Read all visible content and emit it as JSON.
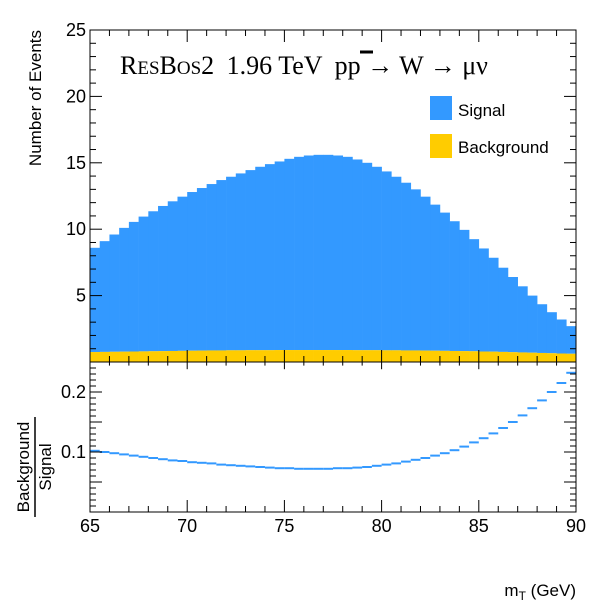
{
  "chart_data": [
    {
      "type": "bar",
      "panel": "top",
      "stacked": true,
      "title_parts": {
        "generator_prefix": "R",
        "generator_small": "ES",
        "generator_b": "B",
        "generator_small2": "OS",
        "generator_suffix": "2",
        "energy": "1.96 TeV",
        "process_p": "p",
        "process_pbar": "p",
        "process_rest": " → W → μν"
      },
      "ylabel": "Number of Events",
      "xlim": [
        65,
        90
      ],
      "ylim": [
        0,
        25
      ],
      "yticks": [
        5,
        10,
        15,
        20,
        25
      ],
      "bin_width": 0.5,
      "series": [
        {
          "name": "Background",
          "color": "#ffcc00",
          "values": [
            0.75,
            0.76,
            0.77,
            0.78,
            0.79,
            0.8,
            0.81,
            0.82,
            0.83,
            0.84,
            0.85,
            0.86,
            0.87,
            0.87,
            0.88,
            0.88,
            0.89,
            0.89,
            0.89,
            0.9,
            0.9,
            0.9,
            0.9,
            0.9,
            0.9,
            0.9,
            0.9,
            0.89,
            0.89,
            0.89,
            0.88,
            0.88,
            0.87,
            0.87,
            0.86,
            0.85,
            0.84,
            0.83,
            0.82,
            0.81,
            0.79,
            0.78,
            0.76,
            0.74,
            0.72,
            0.7,
            0.68,
            0.66,
            0.64,
            0.62
          ]
        },
        {
          "name": "Signal",
          "color": "#3399ff",
          "totals": [
            8.6,
            9.1,
            9.6,
            10.1,
            10.55,
            10.95,
            11.35,
            11.75,
            12.1,
            12.45,
            12.8,
            13.1,
            13.4,
            13.7,
            13.95,
            14.2,
            14.45,
            14.7,
            14.9,
            15.1,
            15.3,
            15.45,
            15.55,
            15.6,
            15.6,
            15.55,
            15.45,
            15.25,
            15.0,
            14.7,
            14.35,
            13.95,
            13.5,
            13.0,
            12.45,
            11.85,
            11.25,
            10.6,
            9.95,
            9.25,
            8.55,
            7.85,
            7.1,
            6.4,
            5.7,
            5.0,
            4.35,
            3.75,
            3.2,
            2.7
          ]
        }
      ],
      "legend": [
        "Signal",
        "Background"
      ],
      "legend_position": "top-right"
    },
    {
      "type": "bar",
      "panel": "bottom",
      "style": "step-markers",
      "ylabel_numerator": "Background",
      "ylabel_denominator": "Signal",
      "xlabel_main": "m",
      "xlabel_sub": "T",
      "xlabel_unit": " (GeV)",
      "xlim": [
        65,
        90
      ],
      "ylim": [
        0,
        0.25
      ],
      "xticks": [
        65,
        70,
        75,
        80,
        85,
        90
      ],
      "yticks": [
        0.1,
        0.2
      ],
      "color": "#3399ff",
      "values": [
        0.102,
        0.1,
        0.098,
        0.096,
        0.094,
        0.092,
        0.09,
        0.088,
        0.086,
        0.085,
        0.083,
        0.082,
        0.081,
        0.079,
        0.078,
        0.077,
        0.076,
        0.075,
        0.074,
        0.073,
        0.073,
        0.072,
        0.072,
        0.072,
        0.072,
        0.073,
        0.073,
        0.074,
        0.075,
        0.077,
        0.079,
        0.081,
        0.084,
        0.087,
        0.09,
        0.094,
        0.098,
        0.103,
        0.109,
        0.116,
        0.123,
        0.131,
        0.14,
        0.15,
        0.161,
        0.173,
        0.186,
        0.2,
        0.215,
        0.232
      ]
    }
  ]
}
